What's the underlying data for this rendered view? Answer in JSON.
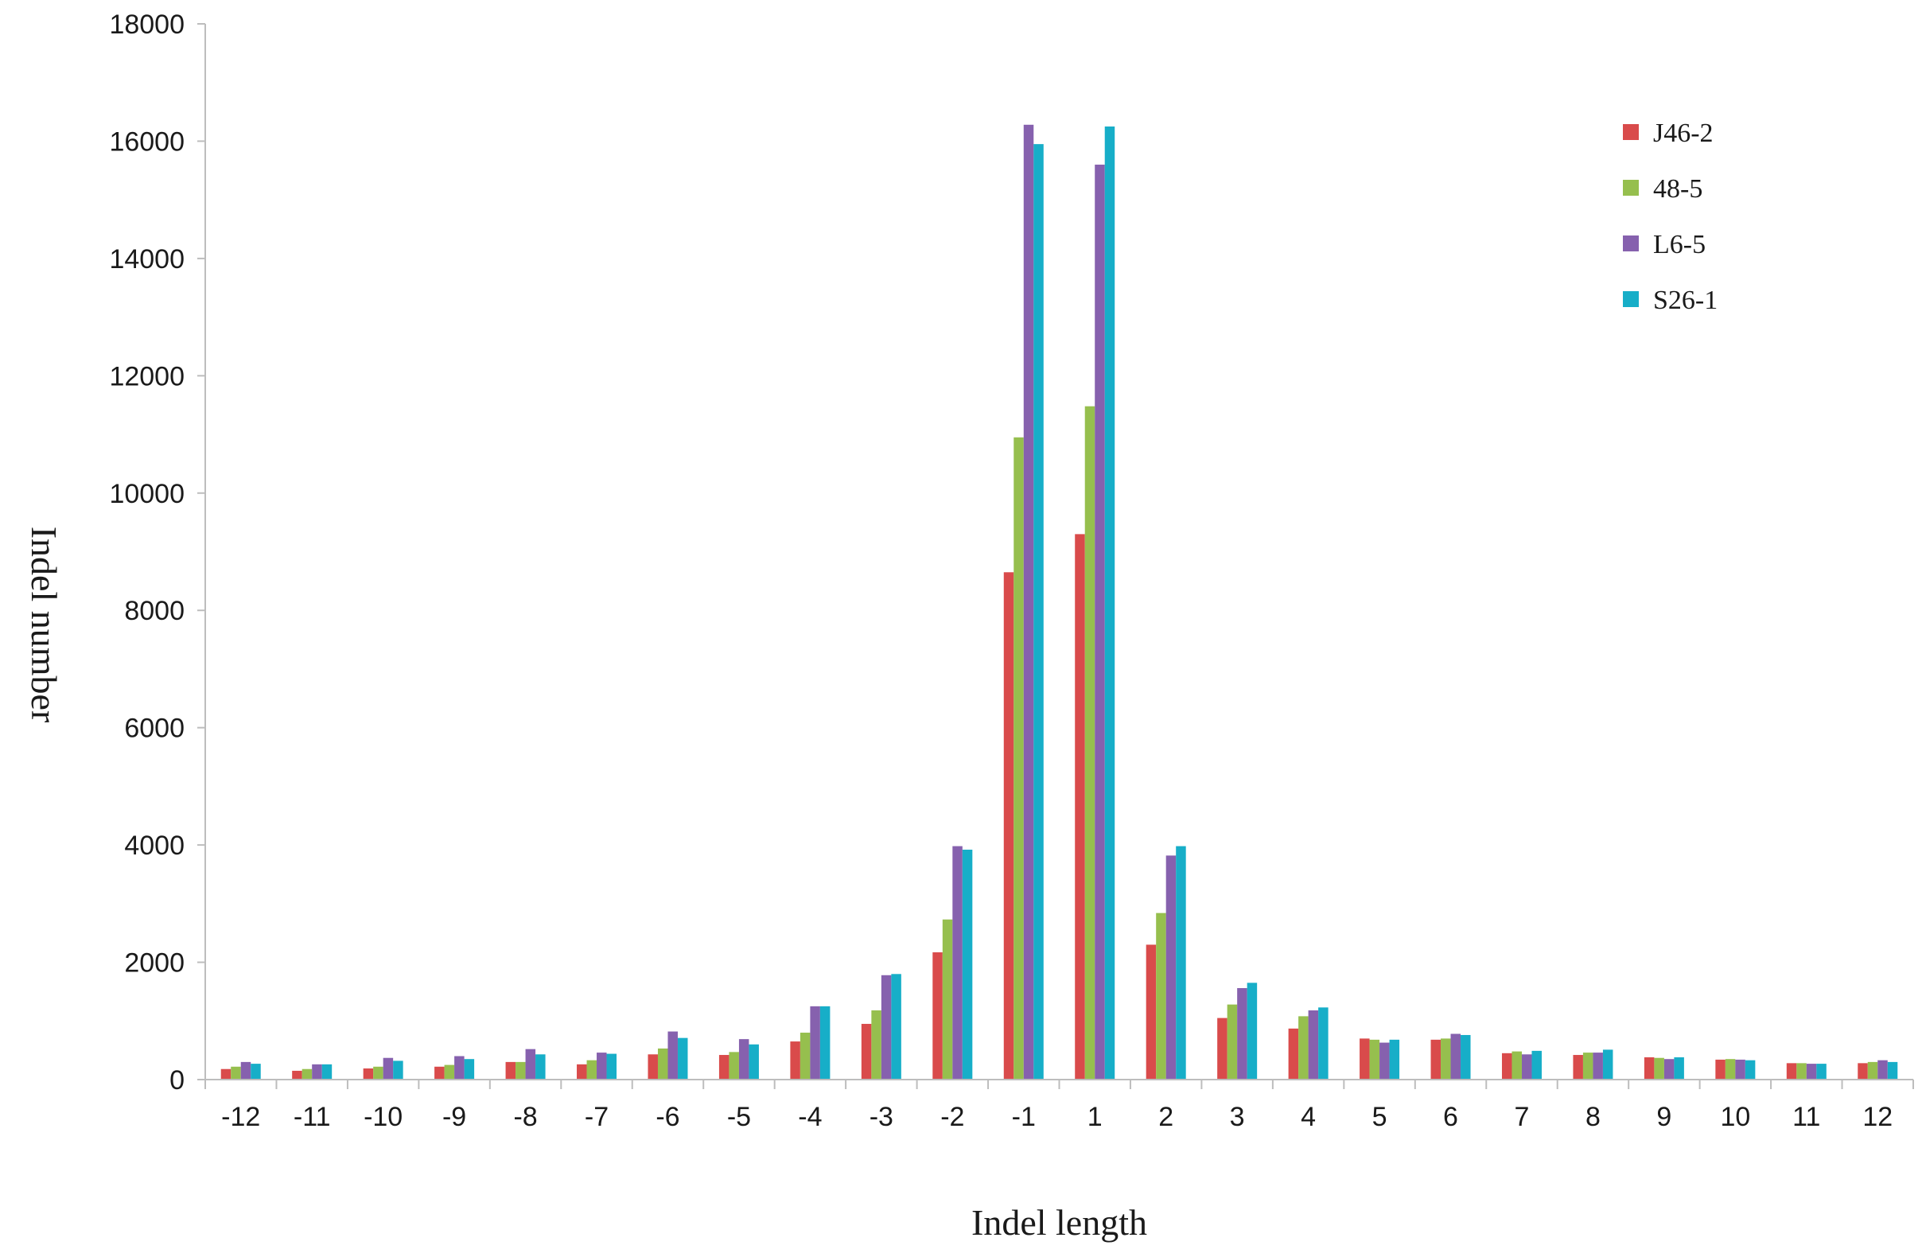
{
  "chart_data": {
    "type": "bar",
    "title": "",
    "xlabel": "Indel length",
    "ylabel": "Indel number",
    "ylim": [
      0,
      18000
    ],
    "yticks": [
      0,
      2000,
      4000,
      6000,
      8000,
      10000,
      12000,
      14000,
      16000,
      18000
    ],
    "grid": false,
    "legend_position": "top-right",
    "categories": [
      "-12",
      "-11",
      "-10",
      "-9",
      "-8",
      "-7",
      "-6",
      "-5",
      "-4",
      "-3",
      "-2",
      "-1",
      "1",
      "2",
      "3",
      "4",
      "5",
      "6",
      "7",
      "8",
      "9",
      "10",
      "11",
      "12"
    ],
    "series": [
      {
        "name": "J46-2",
        "color": "#d94b4b",
        "values": [
          180,
          150,
          190,
          220,
          300,
          260,
          430,
          420,
          650,
          950,
          2170,
          8650,
          9300,
          2300,
          1050,
          870,
          700,
          680,
          450,
          420,
          380,
          340,
          280,
          280
        ]
      },
      {
        "name": "48-5",
        "color": "#96bf4e",
        "values": [
          220,
          180,
          220,
          250,
          300,
          330,
          530,
          470,
          800,
          1180,
          2730,
          10950,
          11480,
          2840,
          1280,
          1080,
          680,
          700,
          480,
          460,
          370,
          350,
          280,
          300
        ]
      },
      {
        "name": "L6-5",
        "color": "#8661ae",
        "values": [
          300,
          260,
          370,
          400,
          520,
          460,
          820,
          690,
          1250,
          1780,
          3980,
          16280,
          15600,
          3820,
          1560,
          1180,
          630,
          780,
          430,
          460,
          350,
          340,
          270,
          330
        ]
      },
      {
        "name": "S26-1",
        "color": "#17aec8",
        "values": [
          270,
          260,
          320,
          350,
          430,
          440,
          710,
          600,
          1250,
          1800,
          3920,
          15950,
          16250,
          3980,
          1650,
          1230,
          680,
          760,
          490,
          510,
          380,
          330,
          270,
          300
        ]
      }
    ]
  }
}
